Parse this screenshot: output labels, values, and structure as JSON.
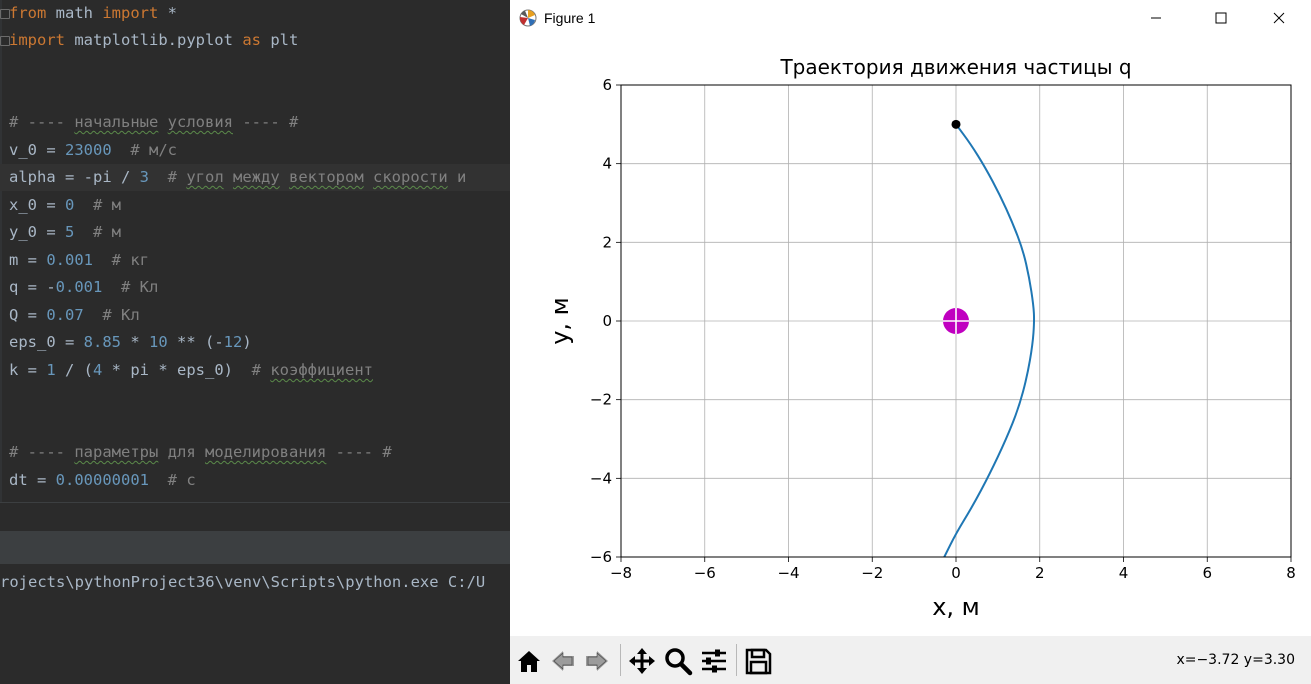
{
  "editor": {
    "lines": [
      {
        "y": 0,
        "parts": [
          [
            "kw",
            "from"
          ],
          [
            "t",
            " math "
          ],
          [
            "kw",
            "import"
          ],
          [
            "t",
            " *"
          ]
        ]
      },
      {
        "y": 27,
        "parts": [
          [
            "kw",
            "import"
          ],
          [
            "t",
            " matplotlib.pyplot "
          ],
          [
            "kw",
            "as"
          ],
          [
            "t",
            " plt"
          ]
        ]
      },
      {
        "y": 109,
        "parts": [
          [
            "cm",
            "# ---- "
          ],
          [
            "cmsq",
            "начальные"
          ],
          [
            "cm",
            " "
          ],
          [
            "cmsq",
            "условия"
          ],
          [
            "cm",
            " ---- #"
          ]
        ]
      },
      {
        "y": 137,
        "parts": [
          [
            "t",
            "v_0 = "
          ],
          [
            "num",
            "23000"
          ],
          [
            "cm",
            "  # м/с"
          ]
        ]
      },
      {
        "y": 164,
        "highlight": true,
        "parts": [
          [
            "t",
            "alpha = -pi / "
          ],
          [
            "num",
            "3"
          ],
          [
            "cm",
            "  # "
          ],
          [
            "cmsq",
            "угол"
          ],
          [
            "cm",
            " "
          ],
          [
            "cmsq",
            "между"
          ],
          [
            "cm",
            " "
          ],
          [
            "cmsq",
            "вектором"
          ],
          [
            "cm",
            " "
          ],
          [
            "cmsq",
            "скорости"
          ],
          [
            "cm",
            " и"
          ]
        ]
      },
      {
        "y": 192,
        "parts": [
          [
            "t",
            "x_0 = "
          ],
          [
            "num",
            "0"
          ],
          [
            "cm",
            "  # м"
          ]
        ]
      },
      {
        "y": 219,
        "parts": [
          [
            "t",
            "y_0 = "
          ],
          [
            "num",
            "5"
          ],
          [
            "cm",
            "  # м"
          ]
        ]
      },
      {
        "y": 247,
        "parts": [
          [
            "t",
            "m = "
          ],
          [
            "num",
            "0.001"
          ],
          [
            "cm",
            "  # кг"
          ]
        ]
      },
      {
        "y": 274,
        "parts": [
          [
            "t",
            "q = -"
          ],
          [
            "num",
            "0.001"
          ],
          [
            "cm",
            "  # Кл"
          ]
        ]
      },
      {
        "y": 302,
        "parts": [
          [
            "t",
            "Q = "
          ],
          [
            "num",
            "0.07"
          ],
          [
            "cm",
            "  # Кл"
          ]
        ]
      },
      {
        "y": 329,
        "parts": [
          [
            "t",
            "eps_0 = "
          ],
          [
            "num",
            "8.85"
          ],
          [
            "t",
            " * "
          ],
          [
            "num",
            "10"
          ],
          [
            "t",
            " ** (-"
          ],
          [
            "num",
            "12"
          ],
          [
            "t",
            ")"
          ]
        ]
      },
      {
        "y": 357,
        "parts": [
          [
            "t",
            "k = "
          ],
          [
            "num",
            "1"
          ],
          [
            "t",
            " / ("
          ],
          [
            "num",
            "4"
          ],
          [
            "t",
            " * pi * eps_0)"
          ],
          [
            "cm",
            "  # "
          ],
          [
            "cmsq",
            "коэффициент"
          ]
        ]
      },
      {
        "y": 439,
        "parts": [
          [
            "cm",
            "# ---- "
          ],
          [
            "cmsq",
            "параметры"
          ],
          [
            "cm",
            " для "
          ],
          [
            "cmsq",
            "моделирования"
          ],
          [
            "cm",
            " ---- #"
          ]
        ]
      },
      {
        "y": 467,
        "parts": [
          [
            "t",
            "dt = "
          ],
          [
            "num",
            "0.00000001"
          ],
          [
            "cm",
            "  # с"
          ]
        ]
      }
    ]
  },
  "console": {
    "command": "rojects\\pythonProject36\\venv\\Scripts\\python.exe C:/U"
  },
  "figure_window": {
    "title": "Figure 1",
    "minimize_label": "—",
    "maximize_label": "☐",
    "close_label": "✕"
  },
  "toolbar": {
    "coords_readout": "x=−3.72 y=3.30",
    "buttons": [
      "home-icon",
      "back-icon",
      "forward-icon",
      "pan-icon",
      "zoom-icon",
      "configure-subplots-icon",
      "save-icon"
    ]
  },
  "chart_data": {
    "type": "line",
    "title": "Траектория движения частицы q",
    "xlabel": "x, м",
    "ylabel": "y, м",
    "xlim": [
      -8,
      8
    ],
    "ylim": [
      -6,
      6
    ],
    "xticks": [
      -8,
      -6,
      -4,
      -2,
      0,
      2,
      4,
      6,
      8
    ],
    "yticks": [
      -6,
      -4,
      -2,
      0,
      2,
      4,
      6
    ],
    "grid": true,
    "series": [
      {
        "color": "#1f77b4",
        "x": [
          0,
          0.35,
          0.7,
          1.05,
          1.35,
          1.6,
          1.75,
          1.85,
          1.87,
          1.83,
          1.7,
          1.5,
          1.2,
          0.8,
          0.4,
          0,
          -0.28
        ],
        "y": [
          5,
          4.5,
          3.9,
          3.2,
          2.5,
          1.8,
          1.1,
          0.4,
          0,
          -0.6,
          -1.4,
          -2.2,
          -3.0,
          -3.9,
          -4.7,
          -5.4,
          -6.0
        ]
      }
    ],
    "points": [
      {
        "name": "start",
        "x": 0,
        "y": 5,
        "color": "#000000"
      },
      {
        "name": "charge-Q",
        "x": 0,
        "y": 0,
        "color": "#c000c0"
      }
    ]
  }
}
